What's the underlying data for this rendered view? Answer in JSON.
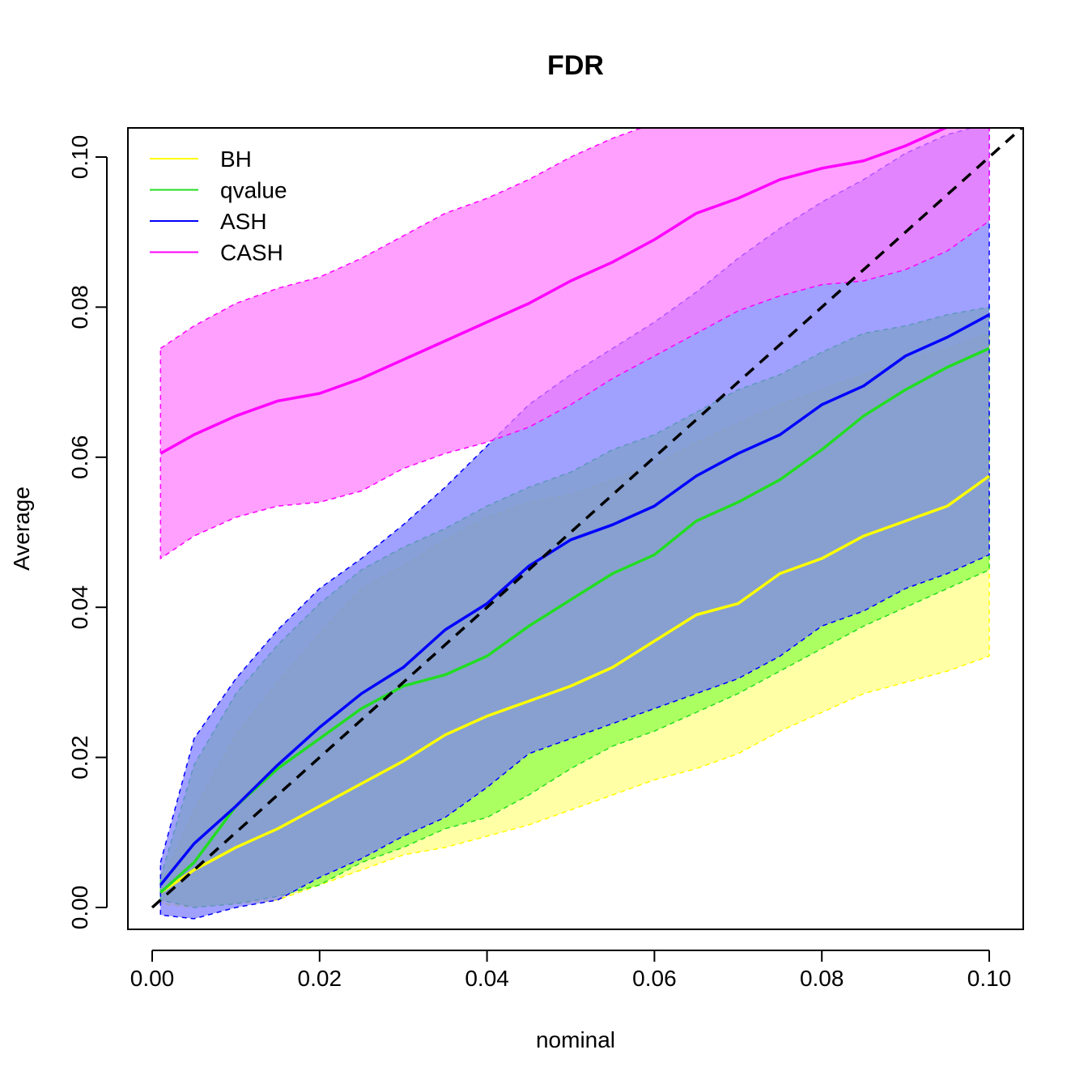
{
  "chart_data": {
    "type": "line",
    "title": "FDR",
    "xlabel": "nominal",
    "ylabel": "Average",
    "xlim": [
      0,
      0.1
    ],
    "ylim": [
      0,
      0.1
    ],
    "x_ticks": [
      "0.00",
      "0.02",
      "0.04",
      "0.06",
      "0.08",
      "0.10"
    ],
    "y_ticks": [
      "0.00",
      "0.02",
      "0.04",
      "0.06",
      "0.08",
      "0.10"
    ],
    "legend_position": "top-left",
    "grid": false,
    "reference_line": {
      "style": "dashed",
      "color": "#000000",
      "from": [
        0,
        0
      ],
      "to": [
        0.1,
        0.1
      ]
    },
    "x": [
      0.001,
      0.005,
      0.01,
      0.015,
      0.02,
      0.025,
      0.03,
      0.035,
      0.04,
      0.045,
      0.05,
      0.055,
      0.06,
      0.065,
      0.07,
      0.075,
      0.08,
      0.085,
      0.09,
      0.095,
      0.1
    ],
    "series": [
      {
        "name": "BH",
        "color": "#ffff00",
        "fill": "#ffff80",
        "values": [
          0.002,
          0.005,
          0.008,
          0.0105,
          0.0135,
          0.0165,
          0.0195,
          0.023,
          0.0255,
          0.0275,
          0.0295,
          0.032,
          0.0355,
          0.039,
          0.0405,
          0.0445,
          0.0465,
          0.0495,
          0.0515,
          0.0535,
          0.0575
        ],
        "upper": [
          0.003,
          0.013,
          0.023,
          0.03,
          0.0365,
          0.0425,
          0.0455,
          0.049,
          0.052,
          0.054,
          0.055,
          0.057,
          0.059,
          0.062,
          0.0645,
          0.067,
          0.069,
          0.071,
          0.073,
          0.0745,
          0.0765
        ],
        "lower": [
          0.0005,
          0.0,
          0.0005,
          0.001,
          0.003,
          0.005,
          0.007,
          0.008,
          0.0095,
          0.011,
          0.013,
          0.015,
          0.017,
          0.0185,
          0.0205,
          0.0235,
          0.026,
          0.0285,
          0.03,
          0.0315,
          0.0335
        ]
      },
      {
        "name": "qvalue",
        "color": "#22dd22",
        "fill": "#88ff44",
        "values": [
          0.002,
          0.006,
          0.0135,
          0.0185,
          0.0225,
          0.0265,
          0.0295,
          0.031,
          0.0335,
          0.0375,
          0.041,
          0.0445,
          0.047,
          0.0515,
          0.054,
          0.057,
          0.061,
          0.0655,
          0.069,
          0.072,
          0.0745
        ],
        "upper": [
          0.004,
          0.019,
          0.0285,
          0.035,
          0.0405,
          0.045,
          0.048,
          0.0505,
          0.0535,
          0.056,
          0.058,
          0.061,
          0.063,
          0.066,
          0.069,
          0.071,
          0.074,
          0.0765,
          0.0775,
          0.079,
          0.08
        ],
        "lower": [
          0.001,
          0.0,
          0.0005,
          0.0015,
          0.003,
          0.006,
          0.008,
          0.0105,
          0.012,
          0.015,
          0.0185,
          0.0215,
          0.0235,
          0.026,
          0.0285,
          0.0315,
          0.0345,
          0.0375,
          0.04,
          0.0425,
          0.045
        ]
      },
      {
        "name": "ASH",
        "color": "#0000ff",
        "fill": "#7777ff",
        "values": [
          0.003,
          0.0085,
          0.0135,
          0.019,
          0.024,
          0.0285,
          0.032,
          0.037,
          0.0405,
          0.0455,
          0.049,
          0.051,
          0.0535,
          0.0575,
          0.0605,
          0.063,
          0.067,
          0.0695,
          0.0735,
          0.076,
          0.079
        ],
        "upper": [
          0.006,
          0.0225,
          0.0305,
          0.037,
          0.0425,
          0.0465,
          0.051,
          0.056,
          0.0615,
          0.067,
          0.071,
          0.0745,
          0.078,
          0.082,
          0.0865,
          0.0905,
          0.094,
          0.097,
          0.1005,
          0.103,
          0.1045
        ],
        "lower": [
          -0.001,
          -0.0015,
          0.0,
          0.001,
          0.004,
          0.0065,
          0.0095,
          0.012,
          0.016,
          0.0205,
          0.0225,
          0.0245,
          0.0265,
          0.0285,
          0.0305,
          0.0335,
          0.0375,
          0.0395,
          0.0425,
          0.0445,
          0.047
        ]
      },
      {
        "name": "CASH",
        "color": "#ff00ff",
        "fill": "#ff77ff",
        "values": [
          0.0605,
          0.063,
          0.0655,
          0.0675,
          0.0685,
          0.0705,
          0.073,
          0.0755,
          0.078,
          0.0805,
          0.0835,
          0.086,
          0.089,
          0.0925,
          0.0945,
          0.097,
          0.0985,
          0.0995,
          0.1015,
          0.104,
          0.1065
        ],
        "upper": [
          0.0745,
          0.0775,
          0.0805,
          0.0825,
          0.084,
          0.0865,
          0.0895,
          0.0925,
          0.0945,
          0.097,
          0.1,
          0.1025,
          0.1045,
          0.106,
          0.107,
          0.108,
          0.109,
          0.11,
          0.111,
          0.112,
          0.113
        ],
        "lower": [
          0.0465,
          0.0495,
          0.052,
          0.0535,
          0.054,
          0.0555,
          0.0585,
          0.0605,
          0.062,
          0.064,
          0.067,
          0.0705,
          0.0735,
          0.0765,
          0.0795,
          0.0815,
          0.083,
          0.0835,
          0.085,
          0.0875,
          0.0915
        ]
      }
    ]
  }
}
